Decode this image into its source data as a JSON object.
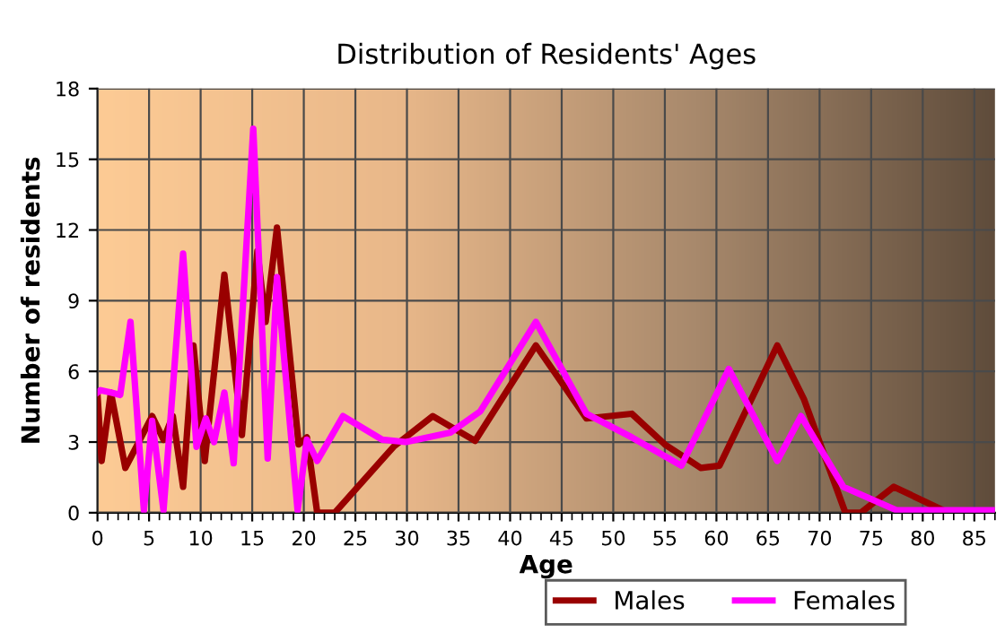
{
  "chart_data": {
    "type": "line",
    "title": "Distribution of Residents' Ages",
    "xlabel": "Age",
    "ylabel": "Number of residents",
    "xlim": [
      0,
      87
    ],
    "xticks": [
      0,
      5,
      10,
      15,
      20,
      25,
      30,
      35,
      40,
      45,
      50,
      55,
      60,
      65,
      70,
      75,
      80,
      85
    ],
    "ylim": [
      0,
      18
    ],
    "yticks": [
      0,
      3,
      6,
      9,
      12,
      15,
      18
    ],
    "grid": true,
    "legend": "bottom",
    "marker": "none",
    "line_style": "solid",
    "series": [
      {
        "name": "Males",
        "color": "#990000",
        "x": [
          0,
          0.4,
          1.3,
          2.7,
          5.3,
          6.4,
          7.3,
          8.3,
          9.3,
          10.4,
          12.3,
          14,
          15.5,
          16.3,
          17.4,
          19.5,
          20.3,
          21.3,
          23,
          28.7,
          32.5,
          36.6,
          42.5,
          47.4,
          51.8,
          55,
          58.5,
          60.3,
          65.9,
          68.5,
          72.5,
          74,
          77.2,
          82
        ],
        "values": [
          5,
          2.2,
          5.1,
          1.9,
          4.1,
          3.1,
          4.1,
          1.1,
          7.1,
          2.2,
          10.1,
          3.3,
          11.1,
          8.1,
          12.1,
          2.9,
          3.2,
          0,
          0,
          2.8,
          4.1,
          3.05,
          7.1,
          4.0,
          4.2,
          2.9,
          1.9,
          2.0,
          7.1,
          4.8,
          0,
          0,
          1.1,
          0.1
        ]
      },
      {
        "name": "Females",
        "color": "#ff00ff",
        "x": [
          0,
          0.3,
          1.3,
          2.2,
          3.2,
          4.5,
          5.3,
          6.4,
          8.3,
          9.6,
          10.5,
          11.3,
          12.3,
          13.2,
          15.1,
          16.5,
          17.4,
          19.4,
          20.3,
          21.3,
          23.8,
          27.6,
          29.9,
          34.2,
          37.1,
          42.5,
          47.4,
          51.8,
          56.6,
          61.2,
          65.9,
          68.2,
          72.3,
          77.5,
          86.7
        ],
        "values": [
          5.1,
          5.2,
          5.1,
          5,
          8.1,
          0.1,
          3.9,
          0.1,
          11,
          2.8,
          4,
          3,
          5.1,
          2.1,
          16.3,
          2.3,
          10,
          0.1,
          3.1,
          2.2,
          4.1,
          3.1,
          3,
          3.4,
          4.3,
          8.1,
          4.2,
          3.2,
          2.0,
          6.1,
          2.2,
          4.1,
          1.1,
          0.1,
          0.1
        ]
      }
    ]
  }
}
